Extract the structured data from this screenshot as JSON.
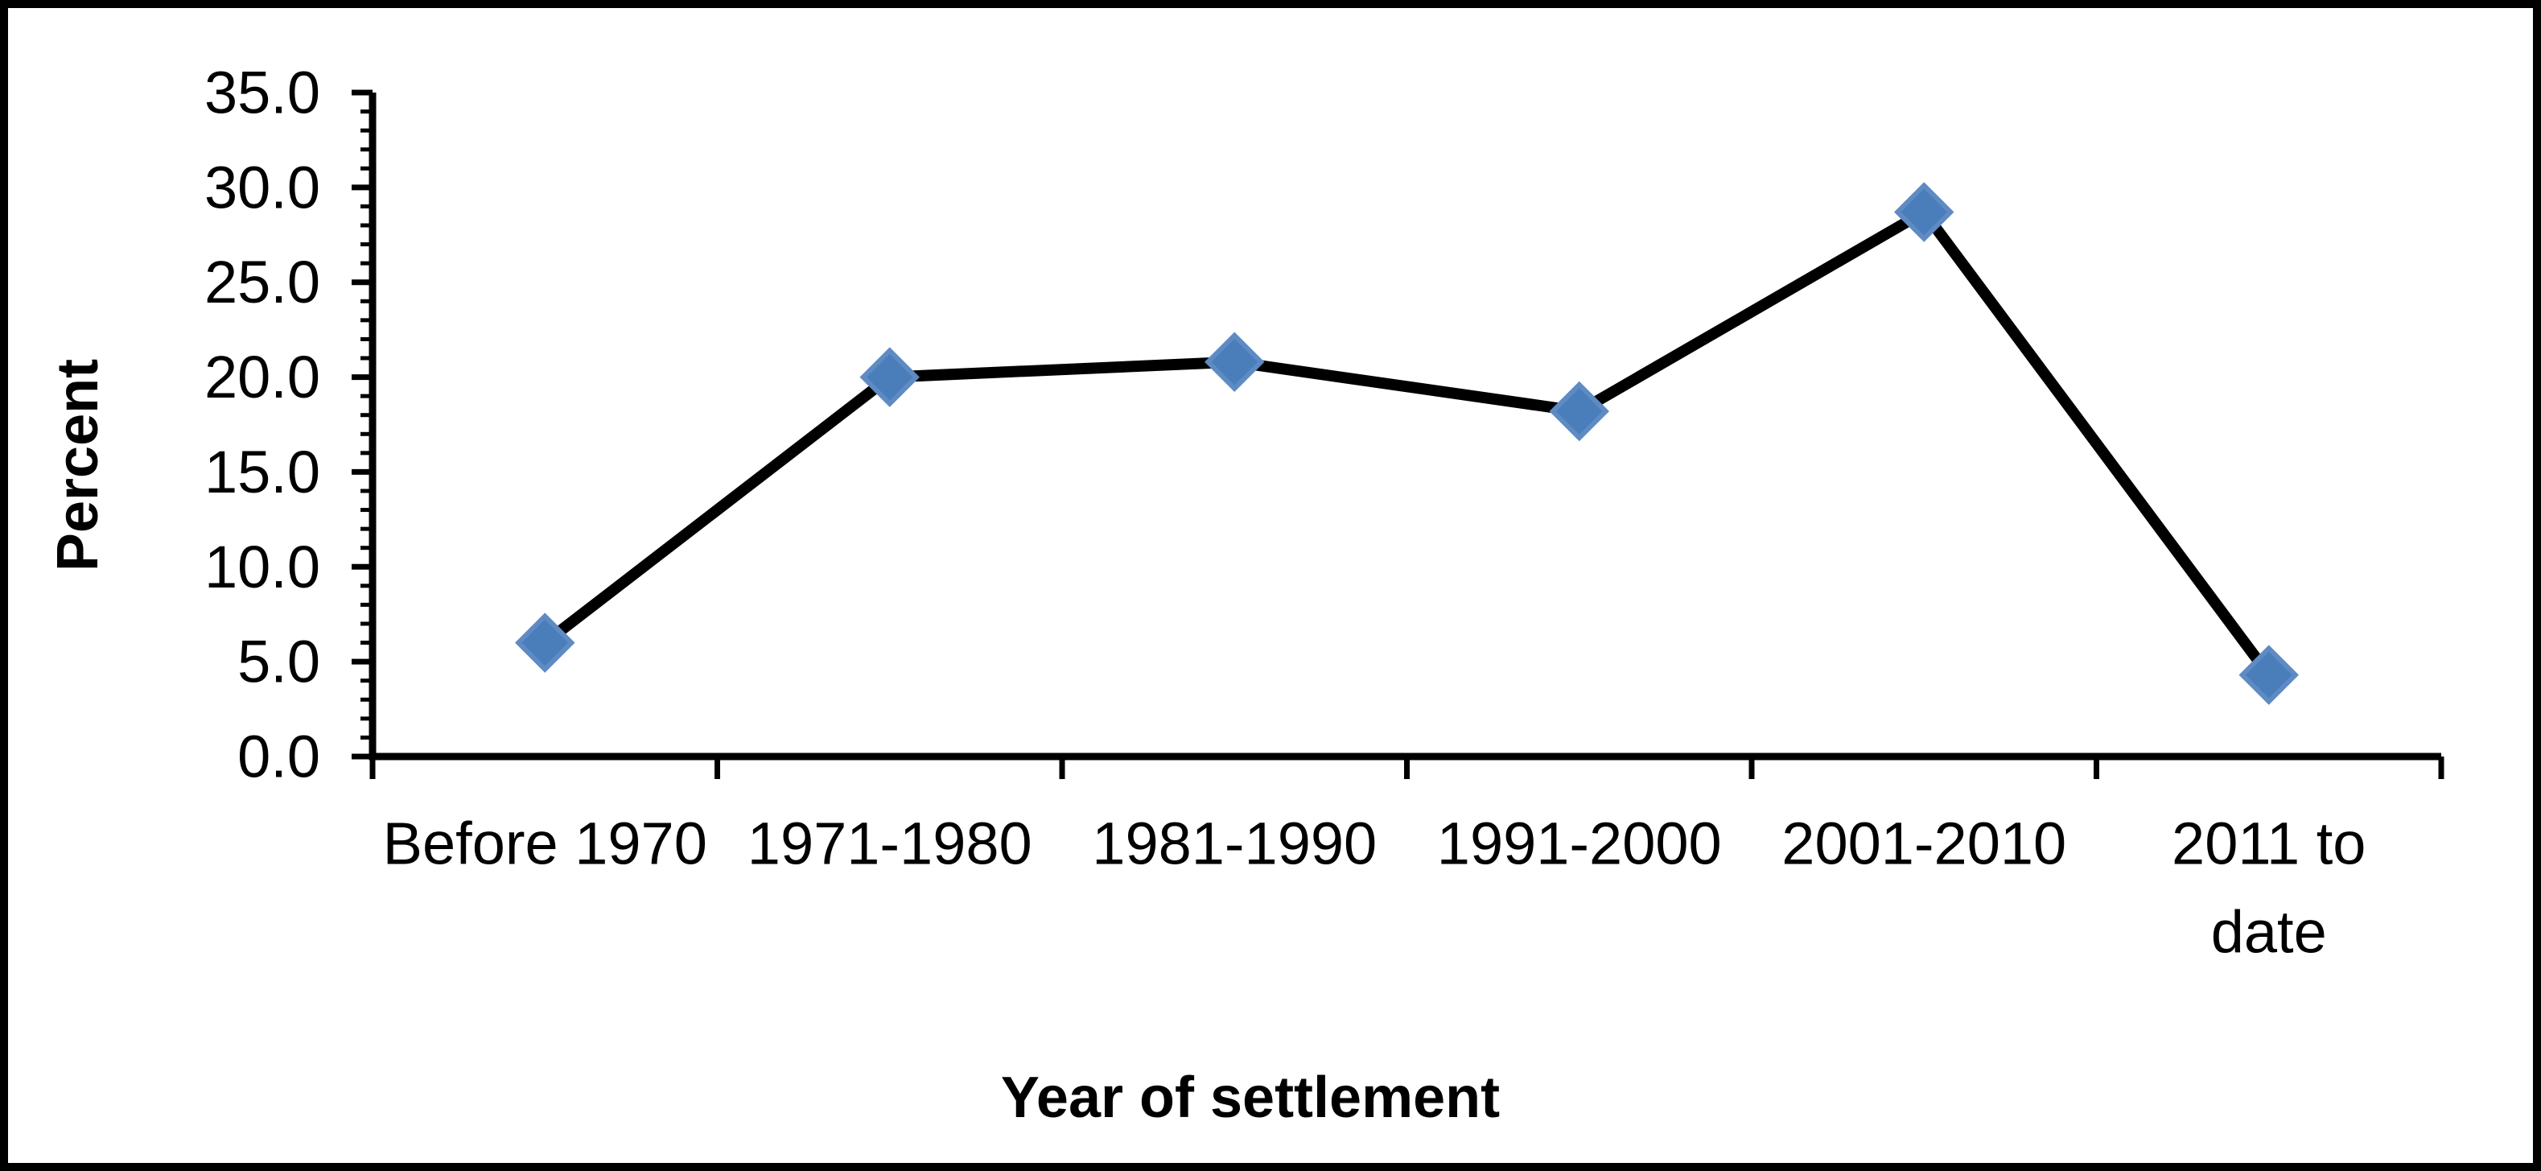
{
  "figure": {
    "background": "#FFFFFF",
    "border_color": "#000000"
  },
  "chart_data": {
    "type": "line",
    "title": "",
    "xlabel": "Year of settlement",
    "ylabel": "Percent",
    "categories": [
      "Before 1970",
      "1971-1980",
      "1981-1990",
      "1991-2000",
      "2001-2010",
      "2011 to date"
    ],
    "category_label_lines": [
      [
        "Before 1970"
      ],
      [
        "1971-1980"
      ],
      [
        "1981-1990"
      ],
      [
        "1991-2000"
      ],
      [
        "2001-2010"
      ],
      [
        "2011 to",
        "date"
      ]
    ],
    "series": [
      {
        "name": "Percent",
        "values": [
          6.0,
          20.0,
          20.8,
          18.2,
          28.7,
          4.3
        ],
        "line_color": "#000000",
        "marker_shape": "diamond",
        "marker_fill": "#4A7EBB",
        "marker_stroke": "#5E8BC4"
      }
    ],
    "ylim": [
      0,
      35
    ],
    "ytick_step": 5,
    "ytick_minor_step": 1,
    "ytick_labels": [
      "0.0",
      "5.0",
      "10.0",
      "15.0",
      "20.0",
      "25.0",
      "30.0",
      "35.0"
    ],
    "grid": false,
    "legend_position": "none",
    "axis_color": "#000000"
  }
}
